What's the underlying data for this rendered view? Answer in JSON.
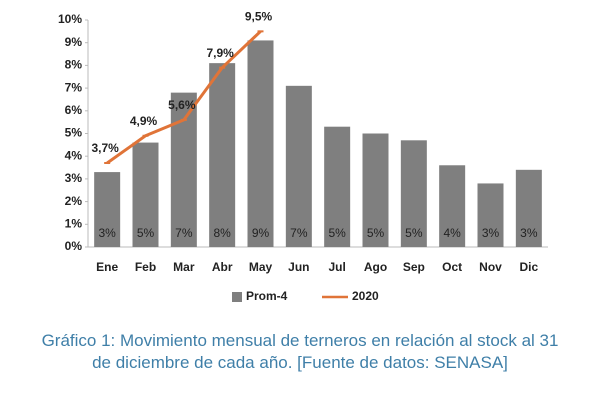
{
  "chart_data": {
    "type": "bar",
    "categories": [
      "Ene",
      "Feb",
      "Mar",
      "Abr",
      "May",
      "Jun",
      "Jul",
      "Ago",
      "Sep",
      "Oct",
      "Nov",
      "Dic"
    ],
    "series": [
      {
        "name": "Prom-4",
        "type": "bar",
        "color": "#7f7f7f",
        "values": [
          3.3,
          4.6,
          6.8,
          8.1,
          9.1,
          7.1,
          5.3,
          5.0,
          4.7,
          3.6,
          2.8,
          3.4
        ],
        "value_labels": [
          "3%",
          "5%",
          "7%",
          "8%",
          "9%",
          "7%",
          "5%",
          "5%",
          "5%",
          "4%",
          "3%",
          "3%"
        ]
      },
      {
        "name": "2020",
        "type": "line",
        "color": "#e07438",
        "label_color": "#e8443c",
        "values": [
          3.7,
          4.9,
          5.6,
          7.9,
          9.5,
          null,
          null,
          null,
          null,
          null,
          null,
          null
        ],
        "value_labels": [
          "3,7%",
          "4,9%",
          "5,6%",
          "7,9%",
          "9,5%",
          null,
          null,
          null,
          null,
          null,
          null,
          null
        ]
      }
    ],
    "ylim": [
      0,
      10
    ],
    "yticks": [
      {
        "value": 0,
        "label": "0%"
      },
      {
        "value": 1,
        "label": "1%"
      },
      {
        "value": 2,
        "label": "2%"
      },
      {
        "value": 3,
        "label": "3%"
      },
      {
        "value": 4,
        "label": "4%"
      },
      {
        "value": 5,
        "label": "5%"
      },
      {
        "value": 6,
        "label": "6%"
      },
      {
        "value": 7,
        "label": "7%"
      },
      {
        "value": 8,
        "label": "8%"
      },
      {
        "value": 9,
        "label": "9%"
      },
      {
        "value": 10,
        "label": "10%"
      }
    ],
    "grid": false,
    "legend": "bottom",
    "caption": "Gráfico 1: Movimiento mensual de terneros en relación al stock al 31 de diciembre de cada año. [Fuente de datos: SENASA]"
  }
}
